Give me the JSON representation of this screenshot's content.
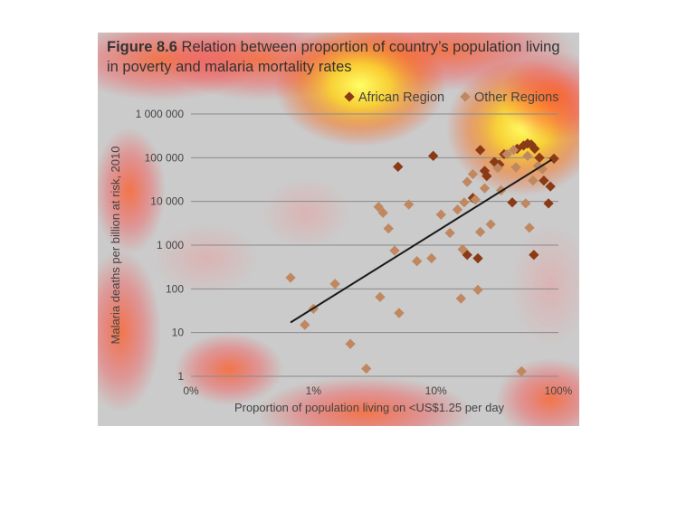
{
  "figure": {
    "number": "Figure 8.6",
    "title": "Relation between proportion of country’s population living in poverty and malaria mortality rates"
  },
  "chart_data": {
    "type": "scatter",
    "xlabel": "Proportion of population living on <US$1.25 per day",
    "ylabel": "Malaria deaths per billion at risk, 2010",
    "x_scale": "log",
    "y_scale": "log",
    "x_ticks": [
      {
        "value": 0.1,
        "label": "0%"
      },
      {
        "value": 1,
        "label": "1%"
      },
      {
        "value": 10,
        "label": "10%"
      },
      {
        "value": 100,
        "label": "100%"
      }
    ],
    "y_ticks": [
      {
        "value": 1,
        "label": "1"
      },
      {
        "value": 10,
        "label": "10"
      },
      {
        "value": 100,
        "label": "100"
      },
      {
        "value": 1000,
        "label": "1 000"
      },
      {
        "value": 10000,
        "label": "10 000"
      },
      {
        "value": 100000,
        "label": "100 000"
      },
      {
        "value": 1000000,
        "label": "1 000 000"
      }
    ],
    "xlim": [
      0.1,
      100
    ],
    "ylim": [
      1,
      1000000
    ],
    "grid": "horizontal",
    "legend_position": "top-right",
    "series": [
      {
        "name": "African Region",
        "color": "#8a3a14",
        "points": [
          [
            4.9,
            62000
          ],
          [
            9.5,
            110000
          ],
          [
            18,
            600
          ],
          [
            22,
            500
          ],
          [
            23,
            150000
          ],
          [
            26,
            38000
          ],
          [
            30,
            80000
          ],
          [
            33,
            70000
          ],
          [
            36,
            120000
          ],
          [
            42,
            9500
          ],
          [
            46,
            160000
          ],
          [
            52,
            190000
          ],
          [
            56,
            210000
          ],
          [
            60,
            200000
          ],
          [
            63,
            600
          ],
          [
            64,
            160000
          ],
          [
            70,
            100000
          ],
          [
            76,
            30000
          ],
          [
            83,
            9000
          ],
          [
            86,
            22000
          ],
          [
            92,
            95000
          ],
          [
            20,
            12000
          ],
          [
            25,
            50000
          ]
        ]
      },
      {
        "name": "Other Regions",
        "color": "#c08860",
        "points": [
          [
            0.65,
            180
          ],
          [
            0.85,
            15
          ],
          [
            1.0,
            35
          ],
          [
            1.5,
            130
          ],
          [
            2.0,
            5.5
          ],
          [
            2.7,
            1.5
          ],
          [
            3.4,
            7500
          ],
          [
            3.5,
            65
          ],
          [
            3.7,
            5500
          ],
          [
            4.1,
            2400
          ],
          [
            4.6,
            750
          ],
          [
            5.0,
            28
          ],
          [
            6.0,
            8500
          ],
          [
            7.0,
            430
          ],
          [
            9.2,
            500
          ],
          [
            11,
            5000
          ],
          [
            13,
            1900
          ],
          [
            15,
            6500
          ],
          [
            16,
            60
          ],
          [
            16.5,
            800
          ],
          [
            17,
            9500
          ],
          [
            18,
            28000
          ],
          [
            20,
            42000
          ],
          [
            21,
            11000
          ],
          [
            22,
            95
          ],
          [
            23,
            2000
          ],
          [
            25,
            20000
          ],
          [
            28,
            3000
          ],
          [
            32,
            58000
          ],
          [
            34,
            18000
          ],
          [
            38,
            120000
          ],
          [
            43,
            150000
          ],
          [
            45,
            60000
          ],
          [
            50,
            1.3
          ],
          [
            54,
            9000
          ],
          [
            56,
            110000
          ],
          [
            58,
            2500
          ],
          [
            62,
            30000
          ],
          [
            68,
            65000
          ],
          [
            74,
            55000
          ]
        ]
      }
    ],
    "trendline": {
      "x": [
        0.65,
        88
      ],
      "y": [
        17,
        90000
      ],
      "color": "#1a1a1a"
    }
  }
}
